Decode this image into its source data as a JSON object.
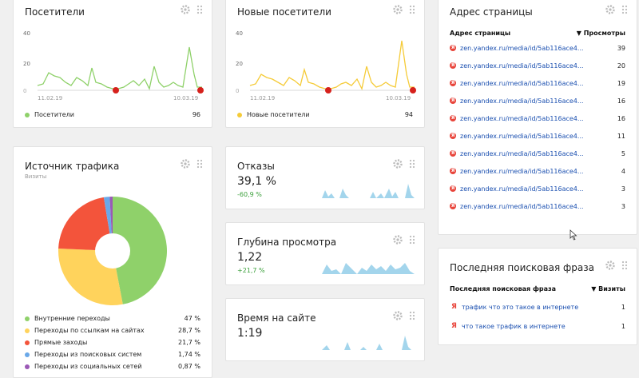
{
  "visitors": {
    "title": "Посетители",
    "y_ticks": [
      "40",
      "20",
      "0"
    ],
    "x_start": "11.02.19",
    "x_end": "10.03.19",
    "legend_label": "Посетители",
    "legend_value": "96",
    "color": "#8fd16a"
  },
  "new_visitors": {
    "title": "Новые посетители",
    "y_ticks": [
      "40",
      "20",
      "0"
    ],
    "x_start": "11.02.19",
    "x_end": "10.03.19",
    "legend_label": "Новые посетители",
    "legend_value": "94",
    "color": "#f5cb38"
  },
  "page_address": {
    "title": "Адрес страницы",
    "col_name": "Адрес страницы",
    "col_views": "▼ Просмотры",
    "rows": [
      {
        "url": "zen.yandex.ru/media/id/5ab116ace4...",
        "views": "39"
      },
      {
        "url": "zen.yandex.ru/media/id/5ab116ace4...",
        "views": "20"
      },
      {
        "url": "zen.yandex.ru/media/id/5ab116ace4...",
        "views": "19"
      },
      {
        "url": "zen.yandex.ru/media/id/5ab116ace4...",
        "views": "16"
      },
      {
        "url": "zen.yandex.ru/media/id/5ab116ace4...",
        "views": "16"
      },
      {
        "url": "zen.yandex.ru/media/id/5ab116ace4...",
        "views": "11"
      },
      {
        "url": "zen.yandex.ru/media/id/5ab116ace4...",
        "views": "5"
      },
      {
        "url": "zen.yandex.ru/media/id/5ab116ace4...",
        "views": "4"
      },
      {
        "url": "zen.yandex.ru/media/id/5ab116ace4...",
        "views": "3"
      },
      {
        "url": "zen.yandex.ru/media/id/5ab116ace4...",
        "views": "3"
      }
    ]
  },
  "traffic_source": {
    "title": "Источник трафика",
    "subtitle": "Визиты",
    "items": [
      {
        "label": "Внутренние переходы",
        "value": "47 %",
        "color": "#8fd16a",
        "share": 47
      },
      {
        "label": "Переходы по ссылкам на сайтах",
        "value": "28,7 %",
        "color": "#ffd35c",
        "share": 28.7
      },
      {
        "label": "Прямые заходы",
        "value": "21,7 %",
        "color": "#f3543b",
        "share": 21.7
      },
      {
        "label": "Переходы из поисковых систем",
        "value": "1,74 %",
        "color": "#6aa8e8",
        "share": 1.74
      },
      {
        "label": "Переходы из социальных сетей",
        "value": "0,87 %",
        "color": "#9b59b6",
        "share": 0.87
      }
    ]
  },
  "bounces": {
    "title": "Отказы",
    "value": "39,1 %",
    "delta": "-60,9 %"
  },
  "depth": {
    "title": "Глубина просмотра",
    "value": "1,22",
    "delta": "+21,7 %"
  },
  "time_on_site": {
    "title": "Время на сайте",
    "value": "1:19"
  },
  "last_search": {
    "title": "Последняя поисковая фраза",
    "col_name": "Последняя поисковая фраза",
    "col_visits": "▼ Визиты",
    "rows": [
      {
        "phrase": "трафик что это такое в интернете",
        "visits": "1"
      },
      {
        "phrase": "что такое трафик в интернете",
        "visits": "1"
      }
    ]
  }
}
